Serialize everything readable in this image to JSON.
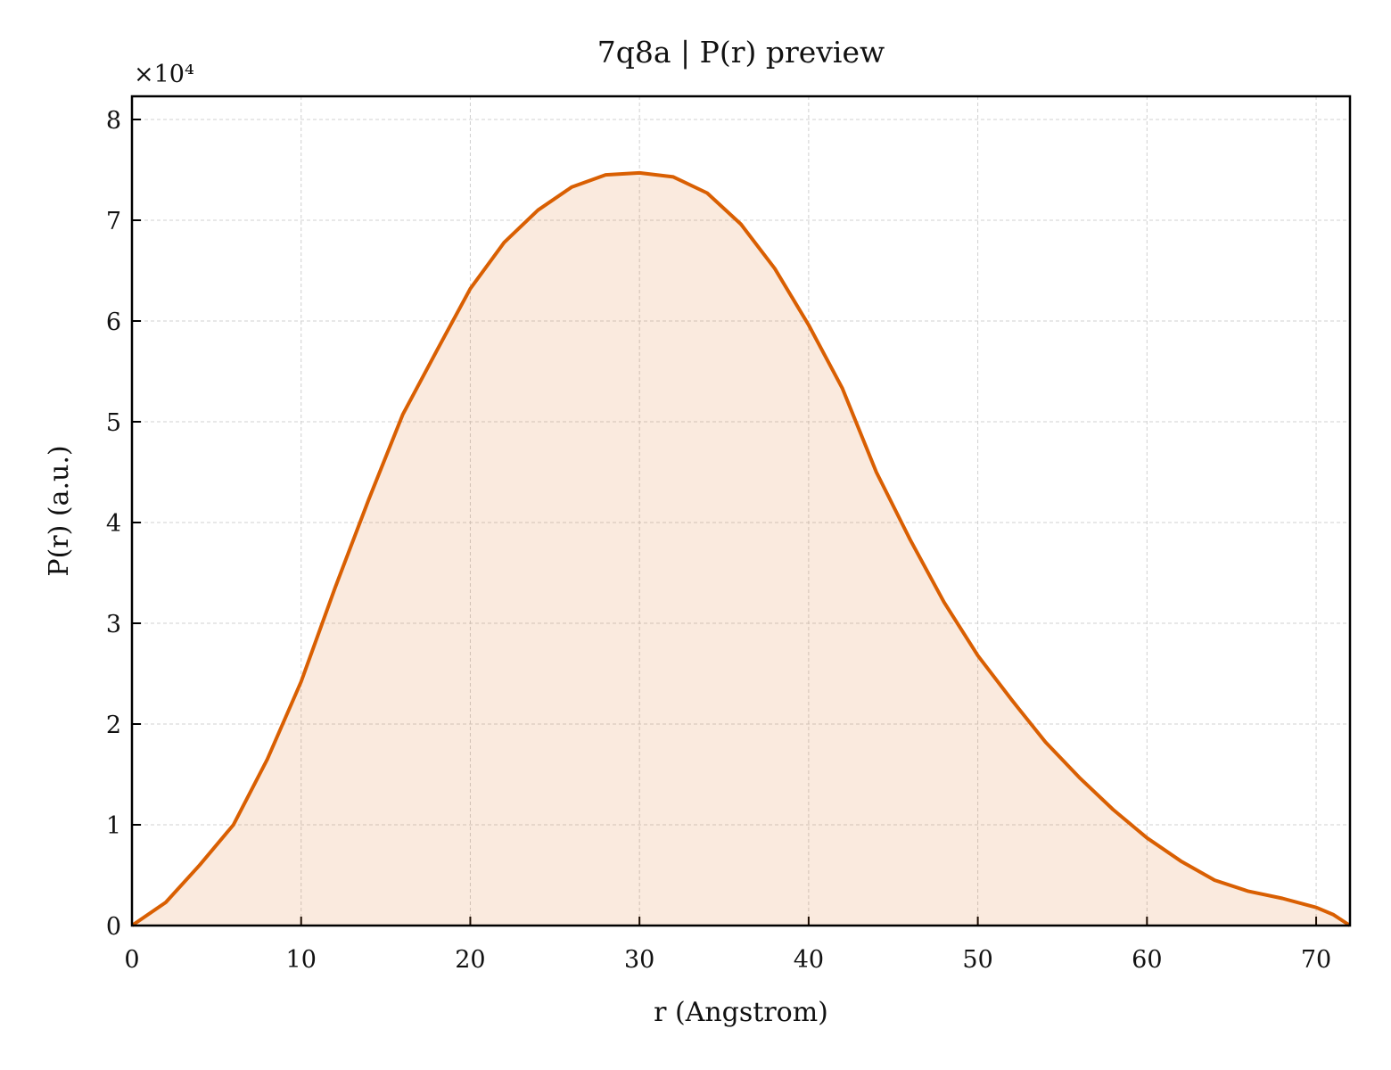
{
  "chart_data": {
    "type": "line",
    "title": "7q8a | P(r) preview",
    "x_label": "r (Angstrom)",
    "y_label": "P(r) (a.u.)",
    "y_offset_label": "×10⁴",
    "x": [
      0,
      2,
      4,
      6,
      8,
      10,
      12,
      14,
      16,
      18,
      20,
      22,
      24,
      26,
      28,
      30,
      32,
      34,
      36,
      38,
      40,
      42,
      44,
      46,
      48,
      50,
      52,
      54,
      56,
      58,
      60,
      62,
      64,
      66,
      68,
      70,
      71,
      72
    ],
    "series": [
      {
        "name": "P(r)",
        "color": "#d95f02",
        "values": [
          0,
          2300,
          6000,
          10000,
          16500,
          24200,
          33500,
          42300,
          50700,
          57000,
          63200,
          67800,
          71000,
          73300,
          74500,
          74700,
          74300,
          72700,
          69600,
          65200,
          59600,
          53300,
          45000,
          38300,
          32100,
          26800,
          22400,
          18200,
          14700,
          11500,
          8700,
          6400,
          4500,
          3400,
          2700,
          1800,
          1100,
          0
        ]
      }
    ],
    "xlim": [
      0,
      72
    ],
    "ylim": [
      0,
      82300
    ],
    "xticks": [
      0,
      10,
      20,
      30,
      40,
      50,
      60,
      70
    ],
    "yticks": [
      {
        "value": 0,
        "label": "0"
      },
      {
        "value": 10000,
        "label": "1"
      },
      {
        "value": 20000,
        "label": "2"
      },
      {
        "value": 30000,
        "label": "3"
      },
      {
        "value": 40000,
        "label": "4"
      },
      {
        "value": 50000,
        "label": "5"
      },
      {
        "value": 60000,
        "label": "6"
      },
      {
        "value": 70000,
        "label": "7"
      },
      {
        "value": 80000,
        "label": "8"
      }
    ],
    "grid": true,
    "fill": true
  }
}
